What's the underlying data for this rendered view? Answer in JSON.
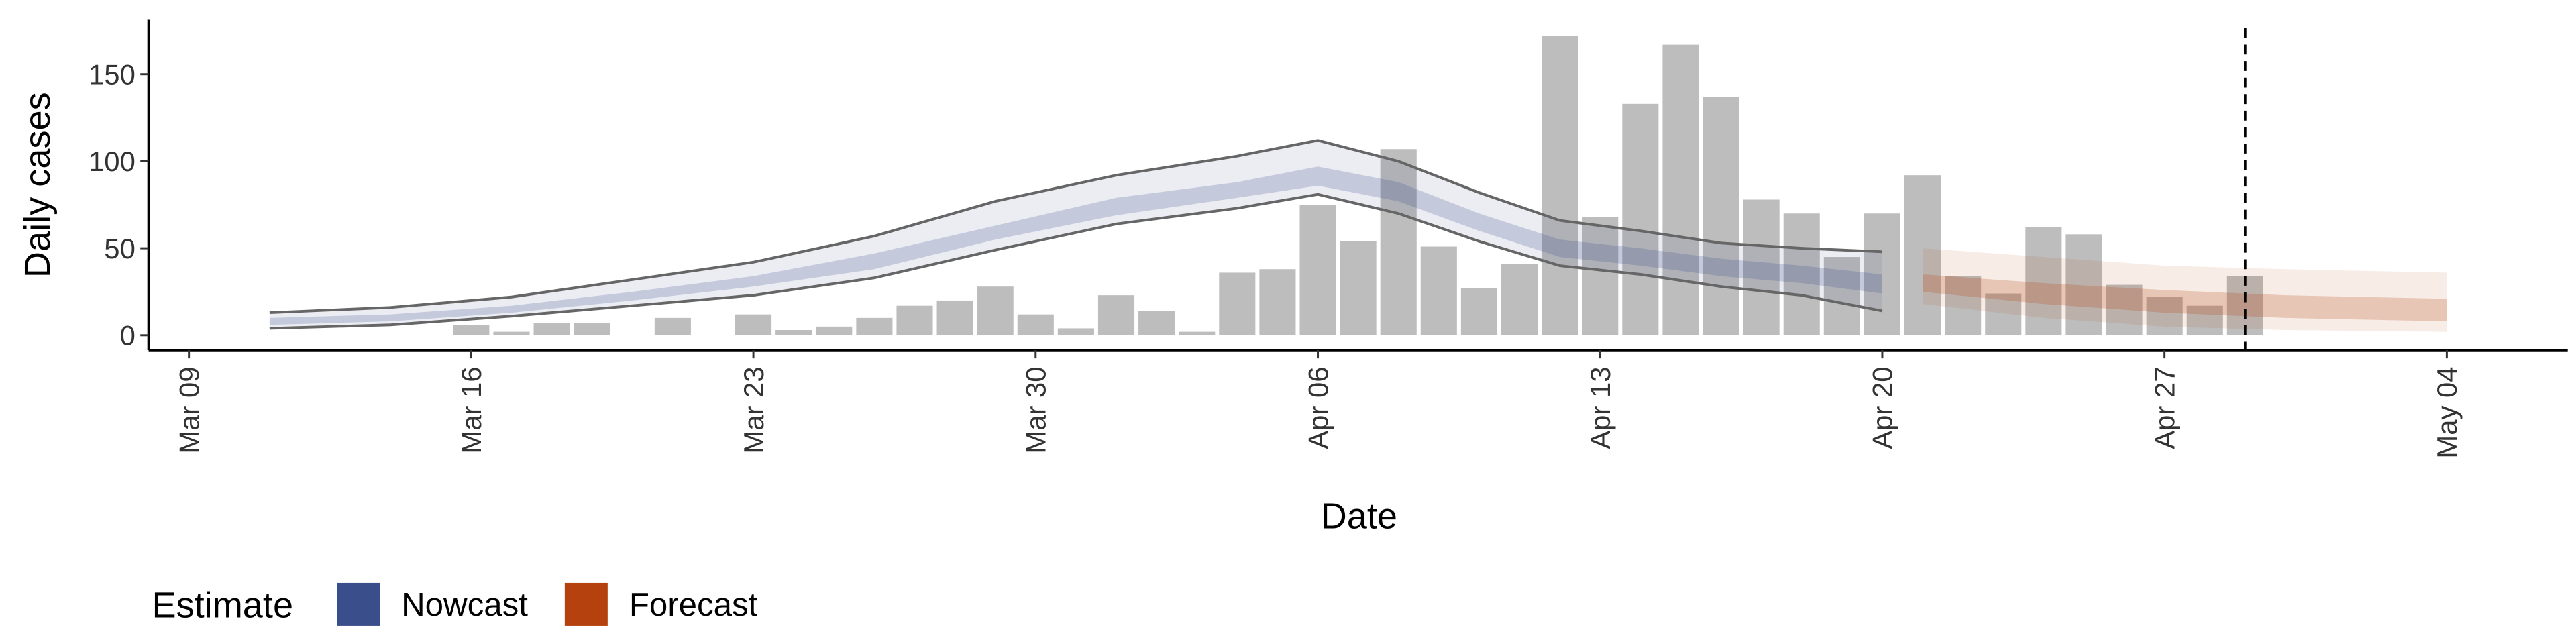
{
  "chart_data": {
    "type": "bar-band",
    "x_label": "Date",
    "y_label": "Daily cases",
    "xlim": [
      "Mar 08",
      "May 07"
    ],
    "xticks": [
      "Mar 09",
      "Mar 16",
      "Mar 23",
      "Mar 30",
      "Apr 06",
      "Apr 13",
      "Apr 20",
      "Apr 27",
      "May 04"
    ],
    "ylim": [
      -8.5,
      181.3
    ],
    "yticks": [
      0,
      50,
      100,
      150
    ],
    "vline": "Apr 29",
    "bars": {
      "color": "#bdbdbd",
      "x": [
        "Mar 16",
        "Mar 17",
        "Mar 18",
        "Mar 19",
        "Mar 21",
        "Mar 23",
        "Mar 24",
        "Mar 25",
        "Mar 26",
        "Mar 27",
        "Mar 28",
        "Mar 29",
        "Mar 30",
        "Mar 31",
        "Apr 01",
        "Apr 02",
        "Apr 03",
        "Apr 04",
        "Apr 05",
        "Apr 06",
        "Apr 07",
        "Apr 08",
        "Apr 09",
        "Apr 10",
        "Apr 11",
        "Apr 12",
        "Apr 13",
        "Apr 14",
        "Apr 15",
        "Apr 16",
        "Apr 17",
        "Apr 18",
        "Apr 19",
        "Apr 20",
        "Apr 21",
        "Apr 22",
        "Apr 23",
        "Apr 24",
        "Apr 25",
        "Apr 26",
        "Apr 27",
        "Apr 28",
        "Apr 29"
      ],
      "values": [
        6,
        2,
        7,
        7,
        10,
        12,
        3,
        5,
        10,
        17,
        20,
        28,
        12,
        4,
        23,
        14,
        2,
        36,
        38,
        75,
        54,
        107,
        51,
        27,
        41,
        172,
        68,
        133,
        167,
        137,
        78,
        70,
        45,
        70,
        92,
        34,
        24,
        62,
        58,
        29,
        22,
        17,
        34
      ]
    },
    "legend_title": "Estimate",
    "series": [
      {
        "name": "Nowcast",
        "color": "#3b4e8c",
        "line_color": "#666666",
        "x": [
          "Mar 11",
          "Mar 14",
          "Mar 17",
          "Mar 20",
          "Mar 23",
          "Mar 26",
          "Mar 29",
          "Apr 01",
          "Apr 04",
          "Apr 06",
          "Apr 08",
          "Apr 10",
          "Apr 12",
          "Apr 14",
          "Apr 16",
          "Apr 18",
          "Apr 20"
        ],
        "upper90": [
          13,
          16,
          22,
          32,
          42,
          57,
          77,
          92,
          103,
          112,
          100,
          82,
          66,
          60,
          53,
          50,
          48
        ],
        "lower90": [
          4,
          6,
          11,
          17,
          23,
          33,
          49,
          64,
          73,
          81,
          70,
          54,
          40,
          35,
          28,
          23,
          14
        ],
        "upper50": [
          10,
          12,
          17,
          25,
          34,
          47,
          63,
          79,
          88,
          97,
          88,
          70,
          55,
          50,
          44,
          40,
          35
        ],
        "lower50": [
          6,
          8,
          13,
          20,
          28,
          38,
          55,
          69,
          79,
          86,
          77,
          60,
          45,
          40,
          34,
          30,
          24
        ]
      },
      {
        "name": "Forecast",
        "color": "#b5410e",
        "x": [
          "Apr 21",
          "Apr 24",
          "Apr 27",
          "Apr 30",
          "May 04"
        ],
        "upper90": [
          50,
          45,
          40,
          38,
          36
        ],
        "lower90": [
          18,
          10,
          5,
          3,
          2
        ],
        "upper50": [
          35,
          30,
          26,
          23,
          21
        ],
        "lower50": [
          25,
          18,
          13,
          10,
          8
        ]
      }
    ]
  }
}
